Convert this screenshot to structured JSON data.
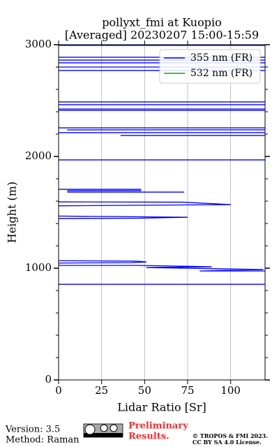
{
  "chart_data": {
    "type": "line",
    "title": "pollyxt_fmi at Kuopio",
    "subtitle": "[Averaged] 20230207 15:00-15:59",
    "x_label": "Lidar Ratio [Sr]",
    "y_label": "Height (m)",
    "xlim": [
      0,
      120
    ],
    "ylim": [
      0,
      3000
    ],
    "xticks": [
      0,
      25,
      50,
      75,
      100
    ],
    "yticks": [
      0,
      1000,
      2000,
      3000
    ],
    "yminorticks": [
      200,
      400,
      600,
      800,
      1200,
      1400,
      1600,
      1800,
      2200,
      2400,
      2600,
      2800
    ],
    "grid": true,
    "legend": "upper right",
    "series": [
      {
        "name": "355 nm (FR)",
        "color": "#0000ff",
        "x": [
          -20,
          150,
          null,
          -20,
          150,
          null,
          -20,
          150,
          null,
          -20,
          150,
          null,
          -20,
          150,
          null,
          -20,
          150,
          null,
          -20,
          150,
          null,
          -20,
          150,
          null,
          -20,
          150,
          null,
          -20,
          150,
          null,
          -20,
          150,
          null,
          5,
          150,
          null,
          -20,
          150,
          null,
          36,
          150,
          null,
          -20,
          150,
          null,
          -20,
          48,
          null,
          5,
          48,
          null,
          5,
          73,
          null,
          -20,
          72,
          100,
          -20,
          null,
          -20,
          75,
          45,
          -20,
          null,
          -20,
          45,
          51,
          42,
          -20,
          null,
          -20,
          45,
          89,
          51,
          119,
          82,
          150,
          null,
          -20,
          150
        ],
        "values": [
          2994,
          2994,
          null,
          2888,
          2888,
          null,
          2862,
          2862,
          null,
          2838,
          2838,
          null,
          2800,
          2800,
          null,
          2769,
          2769,
          null,
          2488,
          2488,
          null,
          2463,
          2463,
          null,
          2425,
          2425,
          null,
          2413,
          2413,
          null,
          2256,
          2256,
          null,
          2238,
          2238,
          null,
          2213,
          2213,
          null,
          2188,
          2188,
          null,
          1969,
          1969,
          null,
          1706,
          1706,
          null,
          1694,
          1694,
          null,
          1681,
          1681,
          null,
          1594,
          1591,
          1569,
          1556,
          null,
          1469,
          1456,
          1447,
          1444,
          null,
          1069,
          1063,
          1056,
          1050,
          1044,
          null,
          1025,
          1025,
          1013,
          1006,
          988,
          975,
          975,
          null,
          856,
          856
        ]
      },
      {
        "name": "532 nm (FR)",
        "color": "#00aa00",
        "x": [],
        "values": []
      }
    ]
  },
  "footer": {
    "version": "Version: 3.5",
    "method": "Method: Raman",
    "preliminary": "Preliminary",
    "results": "Results.",
    "copyright": "© TROPOS & FMI 2023.",
    "license": "CC BY SA 4.0 License."
  }
}
